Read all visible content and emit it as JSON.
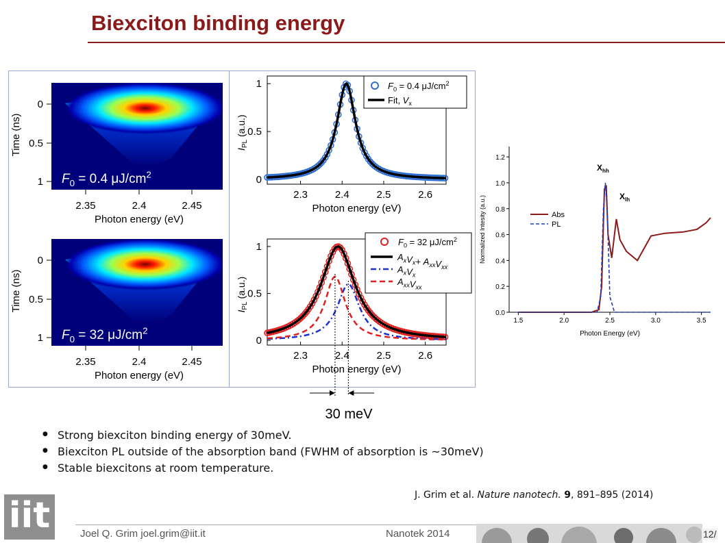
{
  "slide": {
    "title": "Biexciton binding energy",
    "bullets": [
      "Strong biexciton binding energy of 30meV.",
      "Biexciton PL outside of the absorption band (FWHM of absorption is ~30meV)",
      "Stable biexcitons at room temperature."
    ],
    "reference": {
      "authors": "J. Grim et al. ",
      "journal": "Nature nanotech.",
      "volume": "9",
      "pages": ", 891–895 (2014)"
    },
    "footer": {
      "author": "Joel Q. Grim   joel.grim@iit.it",
      "conference": "Nanotek 2014",
      "page": "12/"
    },
    "logo": "iit",
    "annotation": "30 meV",
    "colors": {
      "title": "#8b1a1a",
      "frame": "#9aa6d6"
    }
  },
  "chart_data": [
    {
      "type": "heatmap",
      "xlabel": "Photon energy (eV)",
      "ylabel": "Time (ns)",
      "x_ticks": [
        "2.35",
        "2.4",
        "2.45"
      ],
      "y_ticks": [
        "0",
        "0.5",
        "1"
      ],
      "annotation": "F0 = 0.4 μJ/cm2",
      "colormap": "jet"
    },
    {
      "type": "line",
      "xlabel": "Photon energy (eV)",
      "ylabel": "IPL (a.u.)",
      "x_ticks": [
        "2.3",
        "2.4",
        "2.5",
        "2.6"
      ],
      "y_ticks": [
        "0",
        "0.5",
        "1"
      ],
      "xlim": [
        2.22,
        2.65
      ],
      "ylim": [
        -0.05,
        1.08
      ],
      "series": [
        {
          "name": "F0 = 0.4 μJ/cm2",
          "style": "open circles",
          "color": "#2f6fd0",
          "peak_x": 2.41,
          "fwhm": 0.055,
          "amplitude": 1.0
        },
        {
          "name": "Fit, Vx",
          "style": "solid",
          "color": "#000000",
          "peak_x": 2.41,
          "fwhm": 0.055,
          "amplitude": 1.0
        }
      ],
      "legend": "top-right"
    },
    {
      "type": "heatmap",
      "xlabel": "Photon energy (eV)",
      "ylabel": "Time (ns)",
      "x_ticks": [
        "2.35",
        "2.4",
        "2.45"
      ],
      "y_ticks": [
        "0",
        "0.5",
        "1"
      ],
      "annotation": "F0 = 32 μJ/cm2",
      "colormap": "jet"
    },
    {
      "type": "line",
      "xlabel": "Photon energy (eV)",
      "ylabel": "IPL (a.u.)",
      "x_ticks": [
        "2.3",
        "2.4",
        "2.5",
        "2.6"
      ],
      "y_ticks": [
        "0",
        "0.5",
        "1"
      ],
      "xlim": [
        2.22,
        2.65
      ],
      "ylim": [
        -0.05,
        1.08
      ],
      "series": [
        {
          "name": "F0 = 32 μJ/cm2",
          "style": "open circles",
          "color": "#e02020",
          "peak_x": 2.39,
          "fwhm": 0.1,
          "amplitude": 1.0
        },
        {
          "name": "AxVx+ AxxVxx",
          "style": "solid",
          "color": "#000000",
          "peak_x": 2.39,
          "fwhm": 0.1,
          "amplitude": 1.0
        },
        {
          "name": "AxVx",
          "style": "dash-dot",
          "color": "#1a2fd0",
          "peak_x": 2.415,
          "fwhm": 0.065,
          "amplitude": 0.6
        },
        {
          "name": "AxxVxx",
          "style": "dashed",
          "color": "#e02020",
          "peak_x": 2.383,
          "fwhm": 0.06,
          "amplitude": 0.68
        }
      ],
      "legend": "top-right"
    },
    {
      "type": "line",
      "xlabel": "Photon Energy (eV)",
      "ylabel": "Normalized Intesity (a.u.)",
      "x_ticks": [
        "1.5",
        "2.0",
        "2.5",
        "3.0",
        "3.5"
      ],
      "y_ticks": [
        "0.0",
        "0.2",
        "0.4",
        "0.6",
        "0.8",
        "1.0",
        "1.2"
      ],
      "xlim": [
        1.4,
        3.6
      ],
      "ylim": [
        0,
        1.28
      ],
      "series": [
        {
          "name": "Abs",
          "style": "solid",
          "color": "#8b1a1a",
          "x": [
            1.5,
            2.3,
            2.38,
            2.41,
            2.44,
            2.46,
            2.48,
            2.52,
            2.57,
            2.61,
            2.68,
            2.8,
            2.95,
            3.1,
            3.3,
            3.45,
            3.55,
            3.6
          ],
          "y": [
            0.0,
            0.0,
            0.02,
            0.2,
            0.95,
            0.98,
            0.6,
            0.42,
            0.72,
            0.56,
            0.47,
            0.4,
            0.59,
            0.61,
            0.62,
            0.64,
            0.69,
            0.73
          ]
        },
        {
          "name": "PL",
          "style": "dashed",
          "color": "#1f3fbf",
          "x": [
            1.5,
            2.36,
            2.4,
            2.43,
            2.45,
            2.47,
            2.5,
            2.55,
            3.6
          ],
          "y": [
            0.0,
            0.0,
            0.12,
            0.8,
            1.0,
            0.8,
            0.12,
            0.0,
            0.0
          ]
        }
      ],
      "annotations": [
        "Xhh",
        "Xlh"
      ],
      "legend": "center-left"
    }
  ]
}
